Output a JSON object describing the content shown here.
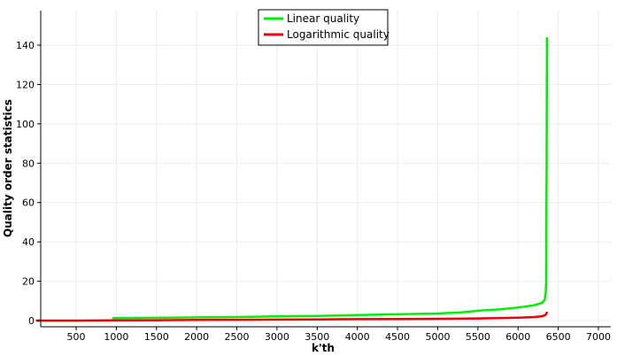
{
  "chart_data": {
    "type": "line",
    "xlabel": "k'th",
    "ylabel": "Quality order statistics",
    "xlim": [
      0,
      7000
    ],
    "ylim": [
      0,
      145
    ],
    "x_ticks": [
      500,
      1000,
      1500,
      2000,
      2500,
      3000,
      3500,
      4000,
      4500,
      5000,
      5500,
      6000,
      6500,
      7000
    ],
    "y_ticks": [
      0,
      20,
      40,
      60,
      80,
      100,
      120,
      140
    ],
    "grid": true,
    "legend_position": "top-center",
    "series": [
      {
        "name": "Linear quality",
        "color": "#00ee00",
        "x": [
          950,
          1000,
          1500,
          2000,
          2500,
          3000,
          3500,
          4000,
          4500,
          5000,
          5300,
          5500,
          5800,
          6000,
          6200,
          6300,
          6330,
          6345,
          6350,
          6355,
          6360
        ],
        "y": [
          1.2,
          1.3,
          1.4,
          1.6,
          1.8,
          2.1,
          2.4,
          2.8,
          3.2,
          3.6,
          4.2,
          5.0,
          5.8,
          6.6,
          7.8,
          9.0,
          10.5,
          14,
          20,
          80,
          144
        ]
      },
      {
        "name": "Logarithmic quality",
        "color": "#ee0000",
        "x": [
          0,
          500,
          950,
          1500,
          2000,
          2500,
          3000,
          3500,
          4000,
          4500,
          5000,
          5500,
          6000,
          6200,
          6300,
          6340,
          6355,
          6360
        ],
        "y": [
          0,
          0,
          0.1,
          0.2,
          0.3,
          0.4,
          0.5,
          0.6,
          0.7,
          0.8,
          0.9,
          1.1,
          1.5,
          1.8,
          2.2,
          2.8,
          3.8,
          4.5
        ]
      }
    ]
  }
}
